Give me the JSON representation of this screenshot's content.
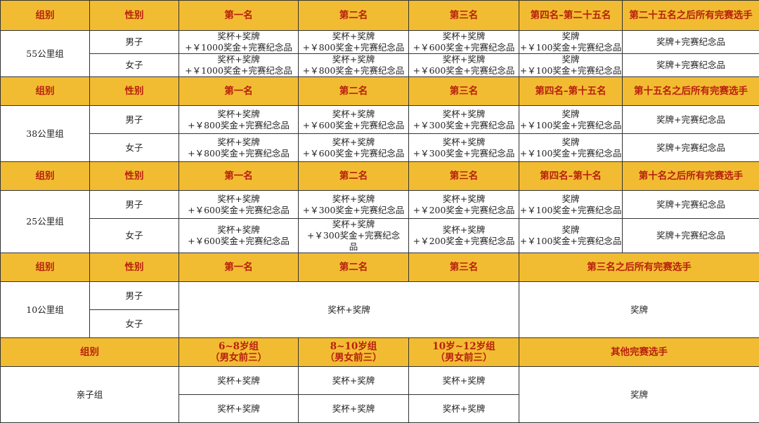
{
  "colors": {
    "header_bg": "#f2bc32",
    "header_text": "#b8200e",
    "border": "#333333"
  },
  "s55": {
    "headers": [
      "组别",
      "性别",
      "第一名",
      "第二名",
      "第三名",
      "第四名–第二十五名",
      "第二十五名之后所有完赛选手"
    ],
    "group": "55公里组",
    "rows": [
      {
        "gender": "男子",
        "cells": [
          "奖杯+奖牌\n+￥1000奖金+完赛纪念品",
          "奖杯+奖牌\n+￥800奖金+完赛纪念品",
          "奖杯+奖牌\n+￥600奖金+完赛纪念品",
          "奖牌\n+￥100奖金+完赛纪念品",
          "奖牌+完赛纪念品"
        ]
      },
      {
        "gender": "女子",
        "cells": [
          "奖杯+奖牌\n+￥1000奖金+完赛纪念品",
          "奖杯+奖牌\n+￥800奖金+完赛纪念品",
          "奖杯+奖牌\n+￥600奖金+完赛纪念品",
          "奖牌\n+￥100奖金+完赛纪念品",
          "奖牌+完赛纪念品"
        ]
      }
    ]
  },
  "s38": {
    "headers": [
      "组别",
      "性别",
      "第一名",
      "第二名",
      "第三名",
      "第四名–第十五名",
      "第十五名之后所有完赛选手"
    ],
    "group": "38公里组",
    "rows": [
      {
        "gender": "男子",
        "cells": [
          "奖杯+奖牌\n+￥800奖金+完赛纪念品",
          "奖杯+奖牌\n+￥600奖金+完赛纪念品",
          "奖杯+奖牌\n+￥300奖金+完赛纪念品",
          "奖牌\n+￥100奖金+完赛纪念品",
          "奖牌+完赛纪念品"
        ]
      },
      {
        "gender": "女子",
        "cells": [
          "奖杯+奖牌\n+￥800奖金+完赛纪念品",
          "奖杯+奖牌\n+￥600奖金+完赛纪念品",
          "奖杯+奖牌\n+￥300奖金+完赛纪念品",
          "奖牌\n+￥100奖金+完赛纪念品",
          "奖牌+完赛纪念品"
        ]
      }
    ]
  },
  "s25": {
    "headers": [
      "组别",
      "性别",
      "第一名",
      "第二名",
      "第三名",
      "第四名–第十名",
      "第十名之后所有完赛选手"
    ],
    "group": "25公里组",
    "rows": [
      {
        "gender": "男子",
        "cells": [
          "奖杯+奖牌\n+￥600奖金+完赛纪念品",
          "奖杯+奖牌\n+￥300奖金+完赛纪念品",
          "奖杯+奖牌\n+￥200奖金+完赛纪念品",
          "奖牌\n+￥100奖金+完赛纪念品",
          "奖牌+完赛纪念品"
        ]
      },
      {
        "gender": "女子",
        "cells": [
          "奖杯+奖牌\n+￥600奖金+完赛纪念品",
          "奖杯+奖牌\n+￥300奖金+完赛纪念\n品",
          "奖杯+奖牌\n+￥200奖金+完赛纪念品",
          "奖牌\n+￥100奖金+完赛纪念品",
          "奖牌+完赛纪念品"
        ]
      }
    ]
  },
  "s10": {
    "headers": [
      "组别",
      "性别",
      "第一名",
      "第二名",
      "第三名",
      "第三名之后所有完赛选手"
    ],
    "group": "10公里组",
    "genders": [
      "男子",
      "女子"
    ],
    "top_prize": "奖杯+奖牌",
    "other_prize": "奖牌"
  },
  "family": {
    "headers": [
      "组别",
      "6~8岁组\n（男女前三）",
      "8~10岁组\n（男女前三）",
      "10岁~12岁组\n（男女前三）",
      "其他完赛选手"
    ],
    "group": "亲子组",
    "rows": [
      [
        "奖杯+奖牌",
        "奖杯+奖牌",
        "奖杯+奖牌"
      ],
      [
        "奖杯+奖牌",
        "奖杯+奖牌",
        "奖杯+奖牌"
      ]
    ],
    "other_prize": "奖牌"
  }
}
